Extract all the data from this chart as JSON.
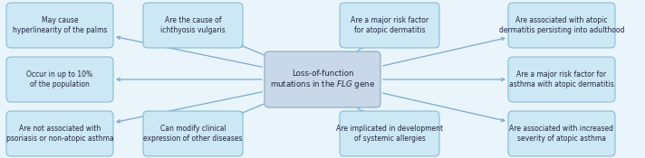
{
  "center_text_line1": "Loss-of-function",
  "center_text_line2": "mutations in the ιτFLGιτ gene",
  "center_box_color": "#c8d8e8",
  "center_box_edge": "#8aaabb",
  "satellite_box_color": "#cce8f4",
  "satellite_box_edge": "#7ab5cc",
  "arrow_color": "#7aabcc",
  "bg_color": "#eaf4fb",
  "text_color": "#222244",
  "nodes": [
    {
      "text": "May cause\nhyperlinearity of the palms",
      "col": 0,
      "row": 0
    },
    {
      "text": "Are the cause of\nichthyosis vulgaris",
      "col": 1,
      "row": 0
    },
    {
      "text": "Are a major risk factor\nfor atopic dermatitis",
      "col": 2,
      "row": 0
    },
    {
      "text": "Are associated with atopic\ndermatitis persisting into adulthood",
      "col": 3,
      "row": 0
    },
    {
      "text": "Occur in up to 10%\nof the population",
      "col": 0,
      "row": 1
    },
    {
      "text": "Are a major risk factor for\nasthma with atopic dermatitis",
      "col": 3,
      "row": 1
    },
    {
      "text": "Are not associated with\npsoriasis or non-atopic asthma",
      "col": 0,
      "row": 2
    },
    {
      "text": "Can modify clinical\nexpression of other diseases",
      "col": 1,
      "row": 2
    },
    {
      "text": "Are implicated in development\nof systemic allergies",
      "col": 2,
      "row": 2
    },
    {
      "text": "Are associated with increased\nseverity of atopic asthma",
      "col": 3,
      "row": 2
    }
  ],
  "fig_width": 7.12,
  "fig_height": 1.75,
  "dpi": 100
}
